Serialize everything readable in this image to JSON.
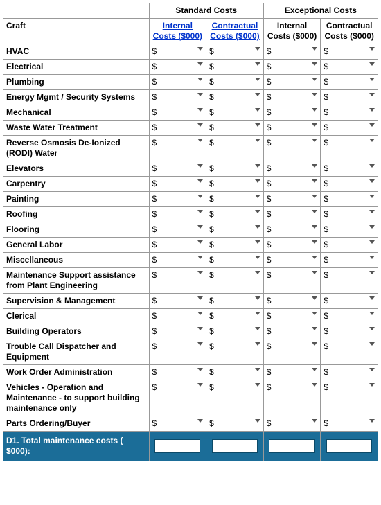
{
  "colors": {
    "border": "#999999",
    "link": "#0033cc",
    "total_bg": "#1b6d98",
    "total_text": "#ffffff",
    "caret": "#555555",
    "bg": "#ffffff"
  },
  "headers": {
    "craft": "Craft",
    "group_standard": "Standard Costs",
    "group_exceptional": "Exceptional Costs",
    "std_internal": "Internal Costs ($000)",
    "std_contractual": "Contractual Costs ($000)",
    "exc_internal": "Internal Costs ($000)",
    "exc_contractual": "Contractual Costs ($000)"
  },
  "currency_symbol": "$",
  "rows": [
    {
      "label": "HVAC"
    },
    {
      "label": "Electrical"
    },
    {
      "label": "Plumbing"
    },
    {
      "label": "Energy Mgmt / Security Systems"
    },
    {
      "label": "Mechanical"
    },
    {
      "label": "Waste Water Treatment"
    },
    {
      "label": "Reverse Osmosis De-Ionized (RODI) Water"
    },
    {
      "label": "Elevators"
    },
    {
      "label": "Carpentry"
    },
    {
      "label": "Painting"
    },
    {
      "label": "Roofing"
    },
    {
      "label": "Flooring"
    },
    {
      "label": "General Labor"
    },
    {
      "label": "Miscellaneous"
    },
    {
      "label": "Maintenance Support assistance from Plant Engineering"
    },
    {
      "label": "Supervision & Management"
    },
    {
      "label": "Clerical"
    },
    {
      "label": "Building Operators"
    },
    {
      "label": "Trouble Call Dispatcher and Equipment"
    },
    {
      "label": "Work Order Administration"
    },
    {
      "label": "Vehicles - Operation and Maintenance - to support building maintenance only"
    },
    {
      "label": "Parts Ordering/Buyer"
    }
  ],
  "total_label": "D1. Total maintenance costs ( $000):"
}
